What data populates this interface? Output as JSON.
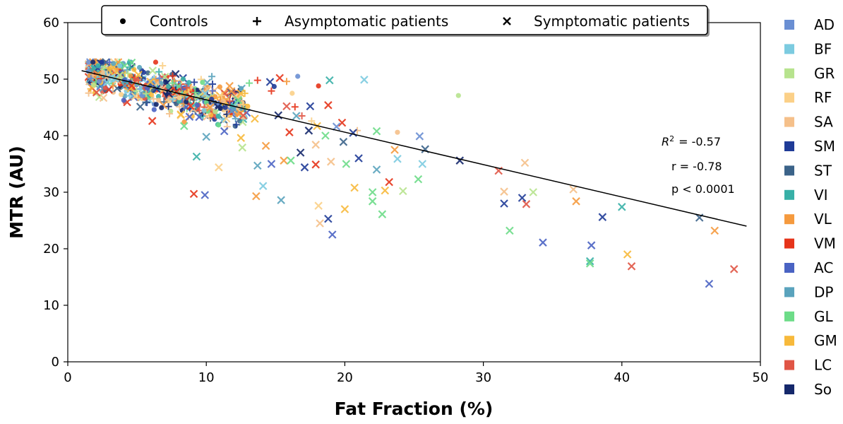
{
  "chart_data": {
    "type": "scatter",
    "xlabel": "Fat Fraction (%)",
    "ylabel": "MTR (AU)",
    "xlim": [
      0,
      50
    ],
    "ylim": [
      0,
      60
    ],
    "xticks": [
      0,
      10,
      20,
      30,
      40,
      50
    ],
    "yticks": [
      0,
      10,
      20,
      30,
      40,
      50,
      60
    ],
    "grid": false,
    "legend_groups": {
      "placement": "top",
      "entries": [
        {
          "marker": "dot",
          "label": "Controls"
        },
        {
          "marker": "plus",
          "label": "Asymptomatic patients"
        },
        {
          "marker": "cross",
          "label": "Symptomatic patients"
        }
      ]
    },
    "legend_muscles": {
      "placement": "right",
      "entries": [
        {
          "label": "AD",
          "color": "#6a8fd3"
        },
        {
          "label": "BF",
          "color": "#7ccbe0"
        },
        {
          "label": "GR",
          "color": "#b7e38e"
        },
        {
          "label": "RF",
          "color": "#fbd088"
        },
        {
          "label": "SA",
          "color": "#f5c08a"
        },
        {
          "label": "SM",
          "color": "#1f3b97"
        },
        {
          "label": "ST",
          "color": "#3b6389"
        },
        {
          "label": "VI",
          "color": "#38b0a7"
        },
        {
          "label": "VL",
          "color": "#f59a3e"
        },
        {
          "label": "VM",
          "color": "#e6341a"
        },
        {
          "label": "AC",
          "color": "#4a63c3"
        },
        {
          "label": "DP",
          "color": "#5aa3bd"
        },
        {
          "label": "GL",
          "color": "#6ddc88"
        },
        {
          "label": "GM",
          "color": "#f7b93b"
        },
        {
          "label": "LC",
          "color": "#e05545"
        },
        {
          "label": "So",
          "color": "#15286b"
        }
      ]
    },
    "regression": {
      "x": [
        1,
        49
      ],
      "y": [
        51.5,
        24.0
      ]
    },
    "stats": {
      "r2": "= -0.57",
      "r": "r = -0.78",
      "p": "p < 0.0001"
    },
    "cluster": {
      "x_range": [
        1.5,
        13
      ],
      "y_range": [
        41,
        53
      ],
      "count": 620
    },
    "symptomatic_points": [
      {
        "x": 9.1,
        "y": 29.7,
        "m": "VM"
      },
      {
        "x": 9.9,
        "y": 29.5,
        "m": "AC"
      },
      {
        "x": 9.3,
        "y": 36.3,
        "m": "VI"
      },
      {
        "x": 10.9,
        "y": 34.4,
        "m": "RF"
      },
      {
        "x": 12.6,
        "y": 37.9,
        "m": "GR"
      },
      {
        "x": 13.6,
        "y": 29.3,
        "m": "VL"
      },
      {
        "x": 14.1,
        "y": 31.1,
        "m": "BF"
      },
      {
        "x": 15.4,
        "y": 28.6,
        "m": "DP"
      },
      {
        "x": 13.7,
        "y": 34.7,
        "m": "DP"
      },
      {
        "x": 14.7,
        "y": 35.0,
        "m": "AC"
      },
      {
        "x": 15.6,
        "y": 35.6,
        "m": "VL"
      },
      {
        "x": 16.1,
        "y": 35.6,
        "m": "GL"
      },
      {
        "x": 17.1,
        "y": 34.4,
        "m": "SM"
      },
      {
        "x": 17.9,
        "y": 34.9,
        "m": "VM"
      },
      {
        "x": 18.1,
        "y": 27.6,
        "m": "RF"
      },
      {
        "x": 18.2,
        "y": 24.5,
        "m": "SA"
      },
      {
        "x": 18.8,
        "y": 25.3,
        "m": "SM"
      },
      {
        "x": 19.1,
        "y": 22.5,
        "m": "AC"
      },
      {
        "x": 19.0,
        "y": 35.4,
        "m": "SA"
      },
      {
        "x": 20.0,
        "y": 27.0,
        "m": "GM"
      },
      {
        "x": 20.1,
        "y": 35.0,
        "m": "GL"
      },
      {
        "x": 20.7,
        "y": 30.8,
        "m": "GM"
      },
      {
        "x": 21.0,
        "y": 36.0,
        "m": "SM"
      },
      {
        "x": 22.0,
        "y": 30.0,
        "m": "GL"
      },
      {
        "x": 22.0,
        "y": 28.4,
        "m": "GL"
      },
      {
        "x": 22.7,
        "y": 26.1,
        "m": "GL"
      },
      {
        "x": 22.9,
        "y": 30.3,
        "m": "GM"
      },
      {
        "x": 23.2,
        "y": 31.8,
        "m": "VM"
      },
      {
        "x": 24.2,
        "y": 30.2,
        "m": "GR"
      },
      {
        "x": 25.3,
        "y": 32.3,
        "m": "GL"
      },
      {
        "x": 25.6,
        "y": 35.0,
        "m": "BF"
      },
      {
        "x": 23.8,
        "y": 35.9,
        "m": "BF"
      },
      {
        "x": 22.3,
        "y": 34.0,
        "m": "DP"
      },
      {
        "x": 23.6,
        "y": 37.5,
        "m": "VL"
      },
      {
        "x": 25.4,
        "y": 39.9,
        "m": "AD"
      },
      {
        "x": 25.8,
        "y": 37.6,
        "m": "ST"
      },
      {
        "x": 21.4,
        "y": 49.9,
        "m": "BF"
      },
      {
        "x": 18.9,
        "y": 49.8,
        "m": "VI"
      },
      {
        "x": 22.3,
        "y": 40.8,
        "m": "GL"
      },
      {
        "x": 28.3,
        "y": 35.6,
        "m": "So"
      },
      {
        "x": 31.1,
        "y": 33.8,
        "m": "LC"
      },
      {
        "x": 31.5,
        "y": 30.1,
        "m": "SA"
      },
      {
        "x": 31.5,
        "y": 28.0,
        "m": "SM"
      },
      {
        "x": 31.9,
        "y": 23.2,
        "m": "GL"
      },
      {
        "x": 32.8,
        "y": 29.0,
        "m": "SM"
      },
      {
        "x": 33.1,
        "y": 27.9,
        "m": "LC"
      },
      {
        "x": 33.6,
        "y": 30.0,
        "m": "GR"
      },
      {
        "x": 33.0,
        "y": 35.2,
        "m": "SA"
      },
      {
        "x": 34.3,
        "y": 21.1,
        "m": "AC"
      },
      {
        "x": 36.5,
        "y": 30.5,
        "m": "SA"
      },
      {
        "x": 36.7,
        "y": 28.4,
        "m": "VL"
      },
      {
        "x": 37.8,
        "y": 20.6,
        "m": "AC"
      },
      {
        "x": 37.7,
        "y": 17.8,
        "m": "VI"
      },
      {
        "x": 37.7,
        "y": 17.4,
        "m": "GL"
      },
      {
        "x": 38.6,
        "y": 25.6,
        "m": "SM"
      },
      {
        "x": 40.0,
        "y": 27.4,
        "m": "VI"
      },
      {
        "x": 40.4,
        "y": 19.0,
        "m": "GM"
      },
      {
        "x": 40.7,
        "y": 16.9,
        "m": "LC"
      },
      {
        "x": 45.6,
        "y": 25.5,
        "m": "ST"
      },
      {
        "x": 46.3,
        "y": 13.8,
        "m": "AC"
      },
      {
        "x": 46.7,
        "y": 23.2,
        "m": "VL"
      },
      {
        "x": 48.1,
        "y": 16.4,
        "m": "LC"
      },
      {
        "x": 14.6,
        "y": 49.5,
        "m": "SM"
      },
      {
        "x": 15.3,
        "y": 50.2,
        "m": "VM"
      },
      {
        "x": 18.8,
        "y": 45.4,
        "m": "VM"
      },
      {
        "x": 19.8,
        "y": 42.3,
        "m": "VM"
      },
      {
        "x": 17.5,
        "y": 45.2,
        "m": "SM"
      },
      {
        "x": 16.5,
        "y": 43.5,
        "m": "DP"
      },
      {
        "x": 19.9,
        "y": 38.9,
        "m": "ST"
      },
      {
        "x": 20.6,
        "y": 40.5,
        "m": "SM"
      },
      {
        "x": 18.0,
        "y": 41.7,
        "m": "GM"
      },
      {
        "x": 17.4,
        "y": 40.9,
        "m": "So"
      },
      {
        "x": 16.0,
        "y": 40.6,
        "m": "VM"
      },
      {
        "x": 15.2,
        "y": 43.6,
        "m": "So"
      },
      {
        "x": 14.3,
        "y": 38.2,
        "m": "VL"
      },
      {
        "x": 15.8,
        "y": 45.2,
        "m": "LC"
      },
      {
        "x": 11.3,
        "y": 40.8,
        "m": "AC"
      },
      {
        "x": 12.5,
        "y": 39.6,
        "m": "GM"
      },
      {
        "x": 10.0,
        "y": 39.8,
        "m": "DP"
      },
      {
        "x": 8.4,
        "y": 41.7,
        "m": "GL"
      },
      {
        "x": 6.1,
        "y": 42.6,
        "m": "VM"
      },
      {
        "x": 13.5,
        "y": 43.0,
        "m": "GM"
      },
      {
        "x": 16.8,
        "y": 37.0,
        "m": "So"
      },
      {
        "x": 17.9,
        "y": 38.4,
        "m": "SA"
      },
      {
        "x": 18.6,
        "y": 40.0,
        "m": "GL"
      },
      {
        "x": 19.4,
        "y": 41.6,
        "m": "AD"
      }
    ],
    "outlier_dots": [
      {
        "x": 16.6,
        "y": 50.5,
        "m": "AD"
      },
      {
        "x": 18.1,
        "y": 48.8,
        "m": "VM"
      },
      {
        "x": 23.8,
        "y": 40.6,
        "m": "SA"
      },
      {
        "x": 28.2,
        "y": 47.1,
        "m": "GR"
      },
      {
        "x": 16.2,
        "y": 47.5,
        "m": "RF"
      },
      {
        "x": 14.9,
        "y": 48.7,
        "m": "SM"
      }
    ],
    "outlier_pluses": [
      {
        "x": 14.7,
        "y": 47.9,
        "m": "VM"
      },
      {
        "x": 16.4,
        "y": 45.1,
        "m": "VM"
      },
      {
        "x": 15.8,
        "y": 49.6,
        "m": "VL"
      },
      {
        "x": 13.7,
        "y": 49.8,
        "m": "VM"
      },
      {
        "x": 16.9,
        "y": 43.5,
        "m": "LC"
      },
      {
        "x": 17.6,
        "y": 42.6,
        "m": "RF"
      },
      {
        "x": 20.9,
        "y": 40.9,
        "m": "SA"
      },
      {
        "x": 13.1,
        "y": 49.3,
        "m": "GL"
      }
    ]
  }
}
